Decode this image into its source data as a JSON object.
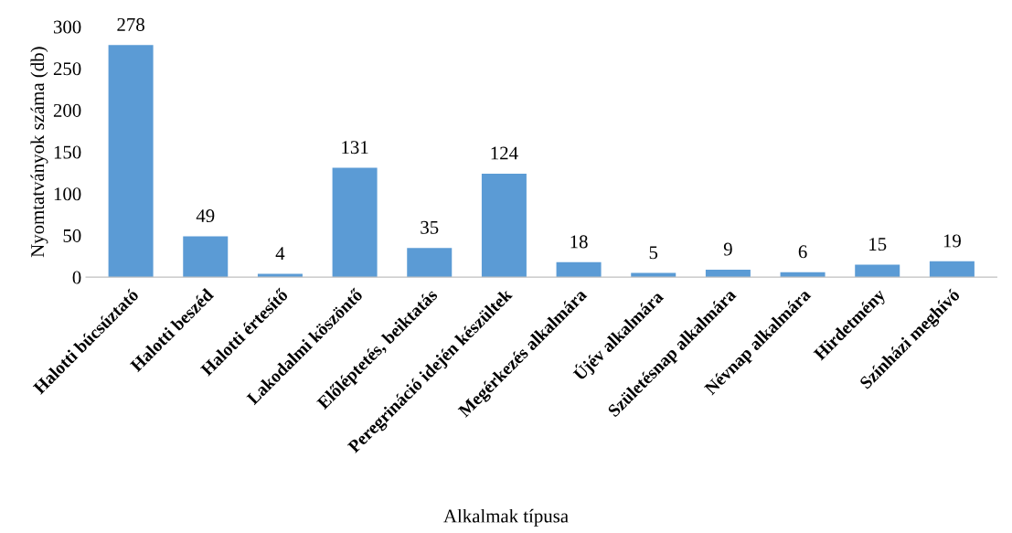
{
  "chart_data": {
    "type": "bar",
    "xlabel": "Alkalmak típusa",
    "ylabel": "Nyomtatványok száma (db)",
    "categories": [
      "Halotti búcsúztató",
      "Halotti beszéd",
      "Halotti értesítő",
      "Lakodalmi köszöntő",
      "Előléptetés, beiktatás",
      "Peregrináció idején készültek",
      "Megérkezés alkalmára",
      "Újév alkalmára",
      "Születésnap alkalmára",
      "Névnap alkalmára",
      "Hirdetmény",
      "Színházi meghívó"
    ],
    "values": [
      278,
      49,
      4,
      131,
      35,
      124,
      18,
      5,
      9,
      6,
      15,
      19
    ],
    "color": "#5b9bd5",
    "ylim": [
      0,
      300
    ],
    "yticks": [
      0,
      50,
      100,
      150,
      200,
      250,
      300
    ],
    "grid": false,
    "data_labels": true
  }
}
